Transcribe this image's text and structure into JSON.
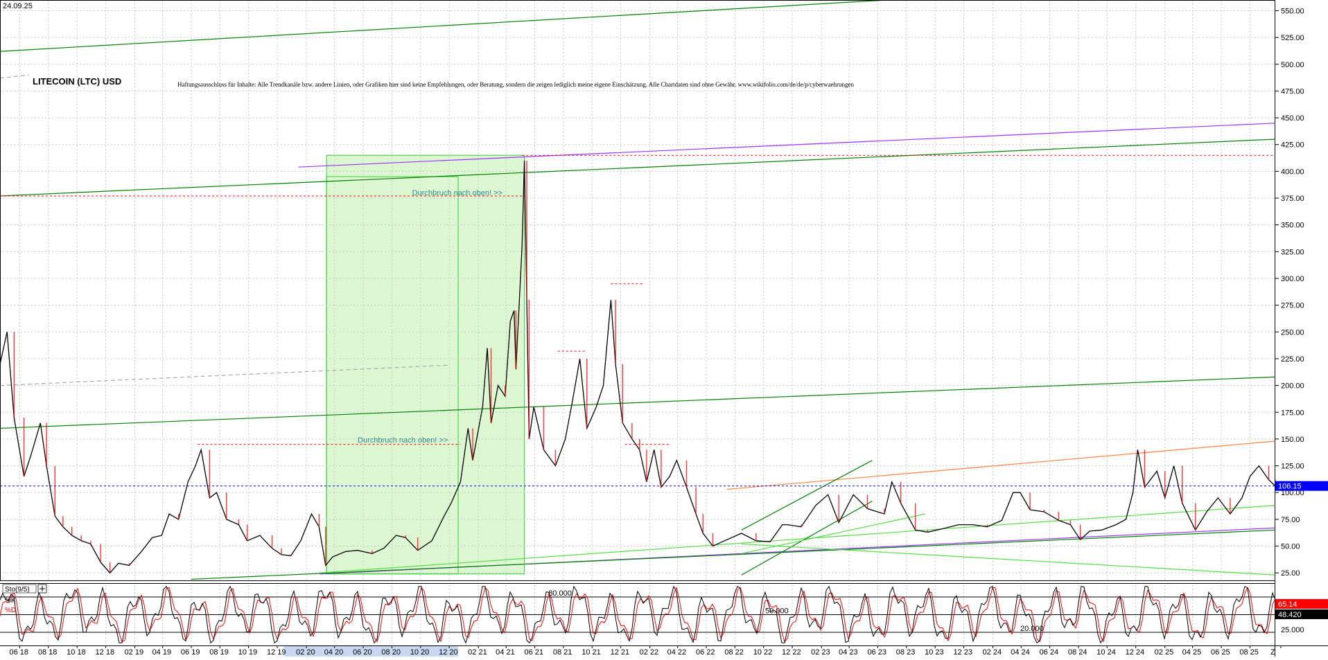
{
  "header": {
    "date": "24.09.25",
    "title": "LITECOIN (LTC) USD",
    "disclaimer": "Haftungsausschluss für Inhalte: Alle Trendkanäle bzw. andere Linien, oder Grafiken hier sind keine Empfehlungen, oder Beratung, sondern die zeigen lediglich meine eigene Einschätzung. Alle Chartdaten sind ohne Gewähr.  www.wikifolio.com/de/de/p/cyberwaehrungen"
  },
  "colors": {
    "price": "#000000",
    "candle_down": "#ff0000",
    "grid": "#c8c8c8",
    "trend_green": "#008000",
    "trend_light_green": "#55dd44",
    "trend_purple": "#9933ff",
    "trend_orange": "#ff8040",
    "resistance_red": "#ff0000",
    "current_line": "#0000ff",
    "highlight_fill": "#d6f5c8",
    "highlight_border": "#33cc33",
    "annotation_text": "#2a8a8a",
    "stoch_k": "#000000",
    "stoch_d": "#ff0000",
    "badge_blue": "#0000ff",
    "badge_red": "#ff0000"
  },
  "annotations": [
    {
      "text": "Durchbruch nach oben! >>",
      "date": "2021-04-15",
      "price": 375
    },
    {
      "text": "Durchbruch nach oben! >>",
      "date": "2020-12-20",
      "price": 144
    }
  ],
  "chart_data": {
    "type": "line",
    "title": "LITECOIN (LTC) USD",
    "y_axis": {
      "position": "right",
      "ylim": [
        18,
        560
      ],
      "ticks": [
        "550.00",
        "525.00",
        "500.00",
        "475.00",
        "450.00",
        "425.00",
        "400.00",
        "375.00",
        "350.00",
        "325.00",
        "300.00",
        "275.00",
        "250.00",
        "225.00",
        "200.00",
        "175.00",
        "150.00",
        "125.00",
        "100.00",
        "75.00",
        "50.00",
        "25.00"
      ],
      "tick_values": [
        550,
        525,
        500,
        475,
        450,
        425,
        400,
        375,
        350,
        325,
        300,
        275,
        250,
        225,
        200,
        175,
        150,
        125,
        100,
        75,
        50,
        25
      ]
    },
    "x_axis": {
      "xlim": [
        "2018-04-20",
        "2025-09-24"
      ],
      "tick_labels": [
        "06 18",
        "08 18",
        "10 18",
        "12 18",
        "02 19",
        "04 19",
        "06 19",
        "08 19",
        "10 19",
        "12 19",
        "02 20",
        "04 20",
        "06 20",
        "08 20",
        "10 20",
        "12 20",
        "02 21",
        "04 21",
        "06 21",
        "08 21",
        "10 21",
        "12 21",
        "02 22",
        "04 22",
        "06 22",
        "08 22",
        "10 22",
        "12 22",
        "02 23",
        "04 23",
        "06 23",
        "08 23",
        "10 23",
        "12 23",
        "02 24",
        "04 24",
        "06 24",
        "08 24",
        "10 24",
        "12 24",
        "02 25",
        "04 25",
        "06 25",
        "08 25",
        "Z"
      ],
      "tick_dates": [
        "2018-06-01",
        "2018-08-01",
        "2018-10-01",
        "2018-12-01",
        "2019-02-01",
        "2019-04-01",
        "2019-06-01",
        "2019-08-01",
        "2019-10-01",
        "2019-12-01",
        "2020-02-01",
        "2020-04-01",
        "2020-06-01",
        "2020-08-01",
        "2020-10-01",
        "2020-12-01",
        "2021-02-01",
        "2021-04-01",
        "2021-06-01",
        "2021-08-01",
        "2021-10-01",
        "2021-12-01",
        "2022-02-01",
        "2022-04-01",
        "2022-06-01",
        "2022-08-01",
        "2022-10-01",
        "2022-12-01",
        "2023-02-01",
        "2023-04-01",
        "2023-06-01",
        "2023-08-01",
        "2023-10-01",
        "2023-12-01",
        "2024-02-01",
        "2024-04-01",
        "2024-06-01",
        "2024-08-01",
        "2024-10-01",
        "2024-12-01",
        "2025-02-01",
        "2025-04-01",
        "2025-06-01",
        "2025-08-01",
        "2025-10-01"
      ],
      "year_2020_highlight": [
        "2019-12-15",
        "2020-12-20"
      ]
    },
    "grid": true,
    "current_price": {
      "value": 106.15,
      "label": "106.15"
    },
    "series": [
      {
        "kind": "price",
        "points": [
          [
            "2018-04-20",
            220
          ],
          [
            "2018-05-05",
            250
          ],
          [
            "2018-05-20",
            170
          ],
          [
            "2018-06-10",
            115
          ],
          [
            "2018-06-25",
            135
          ],
          [
            "2018-07-15",
            165
          ],
          [
            "2018-07-28",
            125
          ],
          [
            "2018-08-15",
            78
          ],
          [
            "2018-09-01",
            68
          ],
          [
            "2018-09-20",
            60
          ],
          [
            "2018-10-10",
            55
          ],
          [
            "2018-10-30",
            52
          ],
          [
            "2018-11-20",
            35
          ],
          [
            "2018-12-10",
            25
          ],
          [
            "2018-12-28",
            34
          ],
          [
            "2019-01-20",
            32
          ],
          [
            "2019-02-15",
            45
          ],
          [
            "2019-03-10",
            58
          ],
          [
            "2019-03-30",
            60
          ],
          [
            "2019-04-15",
            80
          ],
          [
            "2019-05-05",
            75
          ],
          [
            "2019-05-25",
            110
          ],
          [
            "2019-06-10",
            125
          ],
          [
            "2019-06-22",
            140
          ],
          [
            "2019-07-10",
            95
          ],
          [
            "2019-07-25",
            100
          ],
          [
            "2019-08-15",
            75
          ],
          [
            "2019-09-10",
            70
          ],
          [
            "2019-09-28",
            55
          ],
          [
            "2019-10-25",
            60
          ],
          [
            "2019-11-20",
            48
          ],
          [
            "2019-12-10",
            42
          ],
          [
            "2019-12-30",
            41
          ],
          [
            "2020-01-20",
            55
          ],
          [
            "2020-02-12",
            80
          ],
          [
            "2020-02-28",
            68
          ],
          [
            "2020-03-13",
            32
          ],
          [
            "2020-03-28",
            40
          ],
          [
            "2020-04-25",
            45
          ],
          [
            "2020-05-20",
            46
          ],
          [
            "2020-06-20",
            43
          ],
          [
            "2020-07-15",
            48
          ],
          [
            "2020-08-10",
            60
          ],
          [
            "2020-08-30",
            58
          ],
          [
            "2020-09-25",
            46
          ],
          [
            "2020-10-25",
            55
          ],
          [
            "2020-11-20",
            78
          ],
          [
            "2020-12-05",
            90
          ],
          [
            "2020-12-25",
            110
          ],
          [
            "2021-01-10",
            160
          ],
          [
            "2021-01-20",
            130
          ],
          [
            "2021-02-10",
            180
          ],
          [
            "2021-02-20",
            235
          ],
          [
            "2021-02-28",
            165
          ],
          [
            "2021-03-15",
            200
          ],
          [
            "2021-03-30",
            190
          ],
          [
            "2021-04-10",
            260
          ],
          [
            "2021-04-18",
            270
          ],
          [
            "2021-04-22",
            215
          ],
          [
            "2021-05-05",
            330
          ],
          [
            "2021-05-10",
            410
          ],
          [
            "2021-05-15",
            280
          ],
          [
            "2021-05-20",
            150
          ],
          [
            "2021-05-30",
            180
          ],
          [
            "2021-06-20",
            140
          ],
          [
            "2021-07-15",
            125
          ],
          [
            "2021-08-05",
            150
          ],
          [
            "2021-08-20",
            185
          ],
          [
            "2021-09-05",
            225
          ],
          [
            "2021-09-20",
            160
          ],
          [
            "2021-10-10",
            180
          ],
          [
            "2021-10-25",
            200
          ],
          [
            "2021-11-10",
            280
          ],
          [
            "2021-11-20",
            220
          ],
          [
            "2021-12-05",
            165
          ],
          [
            "2021-12-25",
            150
          ],
          [
            "2022-01-10",
            140
          ],
          [
            "2022-01-25",
            110
          ],
          [
            "2022-02-10",
            140
          ],
          [
            "2022-02-25",
            105
          ],
          [
            "2022-03-15",
            115
          ],
          [
            "2022-03-30",
            130
          ],
          [
            "2022-04-20",
            105
          ],
          [
            "2022-05-10",
            80
          ],
          [
            "2022-05-25",
            62
          ],
          [
            "2022-06-15",
            50
          ],
          [
            "2022-07-10",
            55
          ],
          [
            "2022-08-15",
            62
          ],
          [
            "2022-09-15",
            55
          ],
          [
            "2022-10-15",
            54
          ],
          [
            "2022-11-10",
            70
          ],
          [
            "2022-11-20",
            70
          ],
          [
            "2022-12-20",
            68
          ],
          [
            "2023-01-20",
            88
          ],
          [
            "2023-02-15",
            98
          ],
          [
            "2023-03-10",
            72
          ],
          [
            "2023-04-10",
            98
          ],
          [
            "2023-05-10",
            85
          ],
          [
            "2023-06-15",
            80
          ],
          [
            "2023-07-01",
            110
          ],
          [
            "2023-07-20",
            90
          ],
          [
            "2023-08-20",
            65
          ],
          [
            "2023-09-15",
            63
          ],
          [
            "2023-10-15",
            66
          ],
          [
            "2023-11-20",
            70
          ],
          [
            "2023-12-20",
            70
          ],
          [
            "2024-01-20",
            68
          ],
          [
            "2024-02-20",
            74
          ],
          [
            "2024-03-15",
            100
          ],
          [
            "2024-03-30",
            100
          ],
          [
            "2024-04-20",
            84
          ],
          [
            "2024-05-20",
            82
          ],
          [
            "2024-06-20",
            74
          ],
          [
            "2024-07-15",
            70
          ],
          [
            "2024-08-05",
            56
          ],
          [
            "2024-08-25",
            64
          ],
          [
            "2024-09-20",
            65
          ],
          [
            "2024-10-20",
            70
          ],
          [
            "2024-11-10",
            75
          ],
          [
            "2024-11-25",
            100
          ],
          [
            "2024-12-05",
            140
          ],
          [
            "2024-12-20",
            105
          ],
          [
            "2025-01-15",
            120
          ],
          [
            "2025-02-01",
            95
          ],
          [
            "2025-02-20",
            125
          ],
          [
            "2025-03-10",
            90
          ],
          [
            "2025-04-07",
            65
          ],
          [
            "2025-05-01",
            82
          ],
          [
            "2025-05-25",
            95
          ],
          [
            "2025-06-20",
            80
          ],
          [
            "2025-07-15",
            95
          ],
          [
            "2025-08-01",
            115
          ],
          [
            "2025-08-20",
            125
          ],
          [
            "2025-09-10",
            112
          ],
          [
            "2025-09-24",
            106
          ]
        ]
      }
    ],
    "trendlines": [
      {
        "color": "#008000",
        "from": [
          "2018-04-20",
          512
        ],
        "to": [
          "2023-06-20",
          560
        ]
      },
      {
        "color": "#008000",
        "from": [
          "2018-04-20",
          377
        ],
        "to": [
          "2025-09-24",
          430
        ]
      },
      {
        "color": "#008000",
        "from": [
          "2018-04-20",
          160
        ],
        "to": [
          "2025-09-24",
          208
        ]
      },
      {
        "color": "#9933ff",
        "from": [
          "2020-01-15",
          404
        ],
        "to": [
          "2025-09-24",
          445
        ]
      },
      {
        "color": "#9933ff",
        "from": [
          "2020-03-01",
          24
        ],
        "to": [
          "2025-09-24",
          67
        ]
      },
      {
        "color": "#008000",
        "from": [
          "2019-06-01",
          19
        ],
        "to": [
          "2025-09-24",
          65
        ]
      },
      {
        "color": "#55dd44",
        "from": [
          "2020-03-01",
          25
        ],
        "to": [
          "2025-09-24",
          88
        ]
      },
      {
        "color": "#ff8040",
        "from": [
          "2022-07-15",
          103
        ],
        "to": [
          "2025-09-24",
          148
        ]
      },
      {
        "color": "#008000",
        "from": [
          "2022-08-15",
          65
        ],
        "to": [
          "2023-05-20",
          130
        ]
      },
      {
        "color": "#008000",
        "from": [
          "2022-08-15",
          23
        ],
        "to": [
          "2023-05-20",
          92
        ]
      },
      {
        "color": "#55dd44",
        "from": [
          "2022-08-15",
          43
        ],
        "to": [
          "2023-09-10",
          80
        ]
      },
      {
        "color": "#55dd44",
        "from": [
          "2022-08-15",
          52
        ],
        "to": [
          "2025-09-24",
          23
        ]
      },
      {
        "color": "#aaaaaa",
        "dashed": true,
        "from": [
          "2018-04-20",
          200
        ],
        "to": [
          "2020-12-01",
          219
        ]
      },
      {
        "color": "#aaaaaa",
        "dashed": true,
        "from": [
          "2018-04-20",
          487
        ],
        "to": [
          "2018-06-20",
          490
        ]
      }
    ],
    "resistance_lines": [
      {
        "price": 415,
        "from": "2021-05-05",
        "to": "2025-09-24"
      },
      {
        "price": 377,
        "from": "2018-04-20",
        "to": "2021-05-12"
      },
      {
        "price": 145,
        "from": "2019-06-15",
        "to": "2020-12-25"
      },
      {
        "price": 295,
        "from": "2021-11-10",
        "to": "2022-01-20"
      },
      {
        "price": 232,
        "from": "2021-07-20",
        "to": "2021-09-20"
      },
      {
        "price": 145,
        "from": "2021-12-10",
        "to": "2022-03-15"
      }
    ],
    "highlight_boxes": [
      {
        "from": [
          "2020-03-15",
          24
        ],
        "to": [
          "2021-05-10",
          415
        ]
      },
      {
        "from": [
          "2020-03-15",
          24
        ],
        "to": [
          "2020-12-20",
          395
        ]
      }
    ],
    "indicator": {
      "name": "Sto(9/5)",
      "k_label": "%K",
      "d_label": "%D",
      "ylim": [
        0,
        100
      ],
      "levels": [
        80,
        50,
        20
      ],
      "level_labels": [
        "80.000",
        "50.000",
        "20.000"
      ],
      "right_ticks": [
        "25.000"
      ],
      "right_tick_values": [
        25
      ],
      "k_value": "65.14",
      "d_value": "48.420"
    }
  }
}
